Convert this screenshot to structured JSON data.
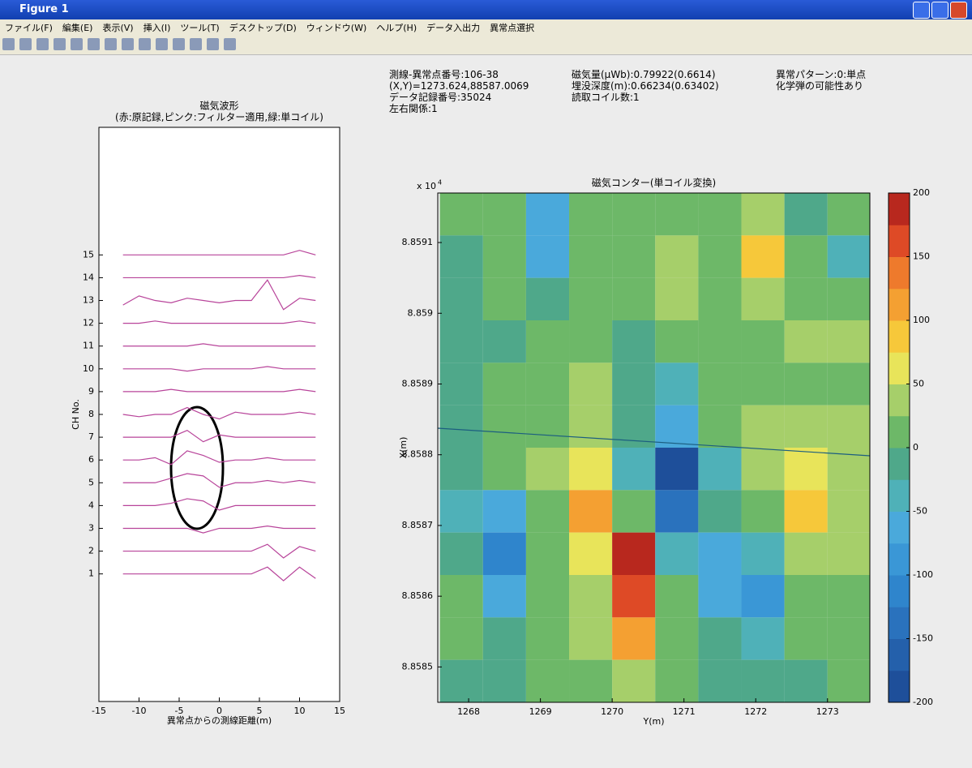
{
  "window": {
    "title": "Figure 1",
    "menu": [
      "ファイル(F)",
      "編集(E)",
      "表示(V)",
      "挿入(I)",
      "ツール(T)",
      "デスクトップ(D)",
      "ウィンドウ(W)",
      "ヘルプ(H)",
      "データ入出力",
      "異常点選択"
    ]
  },
  "info": [
    [
      "測線-異常点番号:106-38",
      "(X,Y)=1273.624,88587.0069",
      "データ記録番号:35024",
      "左右関係:1"
    ],
    [
      "磁気量(μWb):0.79922(0.6614)",
      "埋没深度(m):0.66234(0.63402)",
      "読取コイル数:1"
    ],
    [
      "異常パターン:0:単点",
      "化学弾の可能性あり"
    ]
  ],
  "chart_data": [
    {
      "type": "line",
      "title": "磁気波形",
      "subtitle": "(赤:原記録,ピンク:フィルター適用,緑:単コイル)",
      "xlabel": "異常点からの測線距離(m)",
      "ylabel": "CH No.",
      "xlim": [
        -15,
        15
      ],
      "ylim": [
        -4.6,
        20.6
      ],
      "xticks": [
        -15,
        -10,
        -5,
        0,
        5,
        10,
        15
      ],
      "yticks": [
        1,
        2,
        3,
        4,
        5,
        6,
        7,
        8,
        9,
        10,
        11,
        12,
        13,
        14,
        15
      ],
      "x": [
        -12,
        -10,
        -8,
        -6,
        -4,
        -2,
        0,
        2,
        4,
        6,
        8,
        10,
        12
      ],
      "series": [
        {
          "color": "#b8449a",
          "values": [
            1,
            1,
            1,
            1,
            1,
            1,
            1,
            1,
            1,
            1.3,
            0.7,
            1.3,
            0.8
          ]
        },
        {
          "color": "#b8449a",
          "values": [
            2,
            2,
            2,
            2,
            2,
            2,
            2,
            2,
            2,
            2.3,
            1.7,
            2.2,
            2
          ]
        },
        {
          "color": "#b8449a",
          "values": [
            3,
            3,
            3,
            3,
            3,
            2.8,
            3,
            3,
            3,
            3.1,
            3,
            3,
            3
          ]
        },
        {
          "color": "#b8449a",
          "values": [
            4,
            4,
            4,
            4.1,
            4.3,
            4.2,
            3.8,
            4,
            4,
            4,
            4,
            4,
            4
          ]
        },
        {
          "color": "#b8449a",
          "values": [
            5,
            5,
            5,
            5.2,
            5.4,
            5.3,
            4.8,
            5,
            5,
            5.1,
            5,
            5.1,
            5
          ]
        },
        {
          "color": "#b8449a",
          "values": [
            6,
            6,
            6.1,
            5.8,
            6.4,
            6.2,
            5.9,
            6,
            6,
            6.1,
            6,
            6,
            6
          ]
        },
        {
          "color": "#b8449a",
          "values": [
            7,
            7,
            7,
            7,
            7.3,
            6.8,
            7.1,
            7,
            7,
            7,
            7,
            7,
            7
          ]
        },
        {
          "color": "#b8449a",
          "values": [
            8,
            7.9,
            8,
            8,
            8.3,
            8,
            7.8,
            8.1,
            8,
            8,
            8,
            8.1,
            8
          ]
        },
        {
          "color": "#b8449a",
          "values": [
            9,
            9,
            9,
            9.1,
            9,
            9,
            9,
            9,
            9,
            9,
            9,
            9.1,
            9
          ]
        },
        {
          "color": "#b8449a",
          "values": [
            10,
            10,
            10,
            10,
            9.9,
            10,
            10,
            10,
            10,
            10.1,
            10,
            10,
            10
          ]
        },
        {
          "color": "#b8449a",
          "values": [
            11,
            11,
            11,
            11,
            11,
            11.1,
            11,
            11,
            11,
            11,
            11,
            11,
            11
          ]
        },
        {
          "color": "#b8449a",
          "values": [
            12,
            12,
            12.1,
            12,
            12,
            12,
            12,
            12,
            12,
            12,
            12,
            12.1,
            12
          ]
        },
        {
          "color": "#b8449a",
          "values": [
            12.8,
            13.2,
            13,
            12.9,
            13.1,
            13,
            12.9,
            13,
            13,
            13.9,
            12.6,
            13.1,
            13
          ]
        },
        {
          "color": "#b8449a",
          "values": [
            14,
            14,
            14,
            14,
            14,
            14,
            14,
            14,
            14,
            14,
            14,
            14.1,
            14
          ]
        },
        {
          "color": "#b8449a",
          "values": [
            15,
            15,
            15,
            15,
            15,
            15,
            15,
            15,
            15,
            15,
            15,
            15.2,
            15
          ]
        }
      ]
    },
    {
      "type": "contour",
      "title": "磁気コンター(単コイル変換)",
      "xlabel": "Y(m)",
      "ylabel": "X(m)",
      "y_multiplier": "x 10",
      "y_multiplier_power": "4",
      "xlim": [
        1267.57,
        1273.59
      ],
      "ylim": [
        8.85845,
        8.85917
      ],
      "xticks": [
        1268,
        1269,
        1270,
        1271,
        1272,
        1273
      ],
      "yticks": [
        8.8585,
        8.8586,
        8.8587,
        8.8588,
        8.8589,
        8.859,
        8.8591
      ],
      "x": [
        1267.9,
        1268.5,
        1269.1,
        1269.7,
        1270.3,
        1270.9,
        1271.5,
        1272.1,
        1272.7,
        1273.3
      ],
      "y": [
        8.85914,
        8.85908,
        8.85902,
        8.85896,
        8.8589,
        8.85884,
        8.85878,
        8.85872,
        8.85866,
        8.8586,
        8.85854,
        8.85848
      ],
      "z": [
        [
          0,
          10,
          -60,
          0,
          10,
          20,
          10,
          40,
          -20,
          10
        ],
        [
          -10,
          20,
          -70,
          10,
          20,
          30,
          10,
          90,
          0,
          -40
        ],
        [
          -20,
          10,
          -20,
          20,
          10,
          30,
          20,
          40,
          20,
          20
        ],
        [
          -20,
          -10,
          0,
          10,
          -10,
          0,
          10,
          20,
          30,
          30
        ],
        [
          -10,
          0,
          20,
          30,
          -20,
          -40,
          10,
          0,
          20,
          20
        ],
        [
          -10,
          20,
          10,
          30,
          -10,
          -60,
          10,
          40,
          40,
          30
        ],
        [
          -20,
          0,
          40,
          70,
          -40,
          -180,
          -30,
          40,
          70,
          30
        ],
        [
          -30,
          -60,
          20,
          110,
          20,
          -140,
          -20,
          10,
          90,
          40
        ],
        [
          -20,
          -110,
          0,
          60,
          180,
          -40,
          -60,
          -40,
          40,
          40
        ],
        [
          0,
          -60,
          0,
          40,
          170,
          20,
          -60,
          -100,
          0,
          20
        ],
        [
          0,
          -20,
          0,
          30,
          100,
          20,
          -20,
          -30,
          0,
          0
        ],
        [
          -10,
          -10,
          10,
          20,
          40,
          10,
          -10,
          -10,
          -10,
          0
        ]
      ],
      "colorbar": {
        "clim": [
          -200,
          200
        ],
        "ticks": [
          -200,
          -150,
          -100,
          -50,
          0,
          50,
          100,
          150,
          200
        ],
        "colors": [
          "#1e4f9a",
          "#2460ab",
          "#2a72bd",
          "#2f85cc",
          "#3a97d6",
          "#4aa9db",
          "#4fb1b8",
          "#4fa88a",
          "#6db868",
          "#a6cf6a",
          "#e8e45a",
          "#f6c83a",
          "#f4a032",
          "#ee7a2c",
          "#de4a26",
          "#b8281e"
        ]
      }
    }
  ]
}
